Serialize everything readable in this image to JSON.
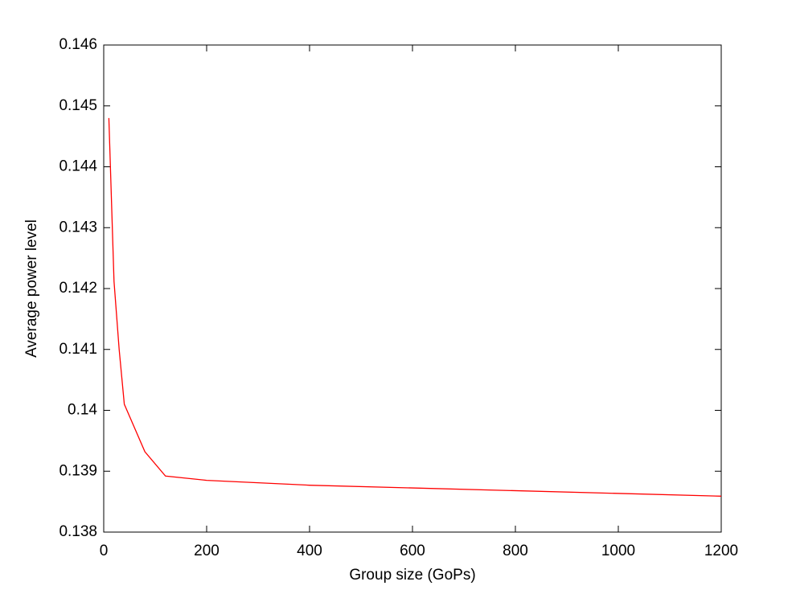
{
  "chart_data": {
    "type": "line",
    "xlabel": "Group size (GoPs)",
    "ylabel": "Average power level",
    "x": [
      10,
      20,
      30,
      40,
      80,
      120,
      200,
      400,
      1200
    ],
    "series": [
      {
        "name": "Average power level",
        "color": "#ff0000",
        "values": [
          0.1448,
          0.14212,
          0.141,
          0.1401,
          0.13932,
          0.13892,
          0.13885,
          0.13877,
          0.13859
        ]
      }
    ],
    "xlim": [
      0,
      1200
    ],
    "xticks": [
      0,
      200,
      400,
      600,
      800,
      1000,
      1200
    ],
    "ylim": [
      0.138,
      0.146
    ],
    "yticks": [
      0.138,
      0.139,
      0.14,
      0.141,
      0.142,
      0.143,
      0.144,
      0.145,
      0.146
    ],
    "grid": false
  }
}
